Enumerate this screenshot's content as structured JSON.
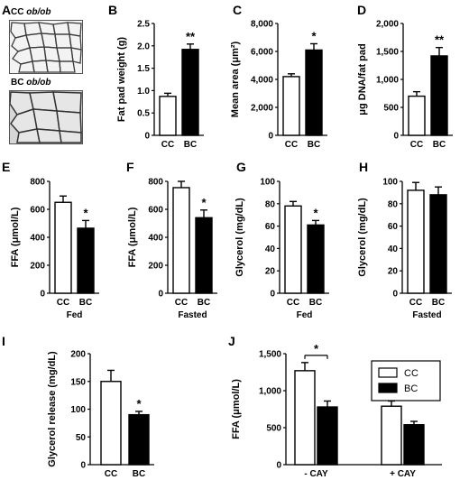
{
  "micrographs": [
    {
      "label_prefix": "CC",
      "label_strain": "ob/ob"
    },
    {
      "label_prefix": "BC",
      "label_strain": "ob/ob"
    }
  ],
  "legend": {
    "items": [
      {
        "name": "CC",
        "fill": "#ffffff"
      },
      {
        "name": "BC",
        "fill": "#000000"
      }
    ]
  },
  "chart_data": [
    {
      "panel": "A",
      "type": "image"
    },
    {
      "panel": "B",
      "type": "bar",
      "categories": [
        "CC",
        "BC"
      ],
      "values": [
        0.87,
        1.92
      ],
      "errors": [
        0.07,
        0.12
      ],
      "ylabel": "Fat pad weight (g)",
      "ylim": [
        0,
        2.5
      ],
      "ticks": [
        "0",
        "0.5",
        "1.0",
        "1.5",
        "2.0",
        "2.5"
      ],
      "tickValues": [
        0,
        0.5,
        1.0,
        1.5,
        2.0,
        2.5
      ],
      "fills": [
        "#ffffff",
        "#000000"
      ],
      "annotation": "**",
      "xlabel": ""
    },
    {
      "panel": "C",
      "type": "bar",
      "categories": [
        "CC",
        "BC"
      ],
      "values": [
        4200,
        6100
      ],
      "errors": [
        200,
        450
      ],
      "ylabel": "Mean area (μm²)",
      "ylim": [
        0,
        8000
      ],
      "ticks": [
        "0",
        "2,000",
        "4,000",
        "6,000",
        "8,000"
      ],
      "tickValues": [
        0,
        2000,
        4000,
        6000,
        8000
      ],
      "fills": [
        "#ffffff",
        "#000000"
      ],
      "annotation": "*",
      "xlabel": ""
    },
    {
      "panel": "D",
      "type": "bar",
      "categories": [
        "CC",
        "BC"
      ],
      "values": [
        700,
        1420
      ],
      "errors": [
        80,
        150
      ],
      "ylabel": "μg DNA/fat pad",
      "ylim": [
        0,
        2000
      ],
      "ticks": [
        "0",
        "500",
        "1,000",
        "1,500",
        "2,000"
      ],
      "tickValues": [
        0,
        500,
        1000,
        1500,
        2000
      ],
      "fills": [
        "#ffffff",
        "#000000"
      ],
      "annotation": "**",
      "xlabel": ""
    },
    {
      "panel": "E",
      "type": "bar",
      "categories": [
        "CC",
        "BC"
      ],
      "values": [
        650,
        465
      ],
      "errors": [
        45,
        55
      ],
      "ylabel": "FFA (μmol/L)",
      "ylim": [
        0,
        800
      ],
      "ticks": [
        "0",
        "200",
        "400",
        "600",
        "800"
      ],
      "tickValues": [
        0,
        200,
        400,
        600,
        800
      ],
      "fills": [
        "#ffffff",
        "#000000"
      ],
      "annotation": "*",
      "xlabel": "Fed"
    },
    {
      "panel": "F",
      "type": "bar",
      "categories": [
        "CC",
        "BC"
      ],
      "values": [
        755,
        540
      ],
      "errors": [
        45,
        55
      ],
      "ylabel": "FFA (μmol/L)",
      "ylim": [
        0,
        800
      ],
      "ticks": [
        "0",
        "200",
        "400",
        "600",
        "800"
      ],
      "tickValues": [
        0,
        200,
        400,
        600,
        800
      ],
      "fills": [
        "#ffffff",
        "#000000"
      ],
      "annotation": "*",
      "xlabel": "Fasted"
    },
    {
      "panel": "G",
      "type": "bar",
      "categories": [
        "CC",
        "BC"
      ],
      "values": [
        78,
        61
      ],
      "errors": [
        4,
        4
      ],
      "ylabel": "Glycerol (mg/dL)",
      "ylim": [
        0,
        100
      ],
      "ticks": [
        "0",
        "20",
        "40",
        "60",
        "80",
        "100"
      ],
      "tickValues": [
        0,
        20,
        40,
        60,
        80,
        100
      ],
      "fills": [
        "#ffffff",
        "#000000"
      ],
      "annotation": "*",
      "xlabel": "Fed"
    },
    {
      "panel": "H",
      "type": "bar",
      "categories": [
        "CC",
        "BC"
      ],
      "values": [
        92,
        88
      ],
      "errors": [
        7,
        7
      ],
      "ylabel": "Glycerol (mg/dL)",
      "ylim": [
        0,
        100
      ],
      "ticks": [
        "0",
        "20",
        "40",
        "60",
        "80",
        "100"
      ],
      "tickValues": [
        0,
        20,
        40,
        60,
        80,
        100
      ],
      "fills": [
        "#ffffff",
        "#000000"
      ],
      "annotation": "",
      "xlabel": "Fasted"
    },
    {
      "panel": "I",
      "type": "bar",
      "categories": [
        "CC",
        "BC"
      ],
      "values": [
        150,
        90
      ],
      "errors": [
        20,
        6
      ],
      "ylabel": "Glycerol release (mg/dL)",
      "ylim": [
        0,
        200
      ],
      "ticks": [
        "0",
        "50",
        "100",
        "150",
        "200"
      ],
      "tickValues": [
        0,
        50,
        100,
        150,
        200
      ],
      "fills": [
        "#ffffff",
        "#000000"
      ],
      "annotation": "*",
      "xlabel": ""
    },
    {
      "panel": "J",
      "type": "bar",
      "categories": [
        "- CAY",
        "+ CAY"
      ],
      "series": [
        {
          "name": "CC",
          "fill": "#ffffff",
          "values": [
            1270,
            790
          ],
          "errors": [
            110,
            70
          ]
        },
        {
          "name": "BC",
          "fill": "#000000",
          "values": [
            780,
            540
          ],
          "errors": [
            80,
            45
          ]
        }
      ],
      "ylabel": "FFA (μmol/L)",
      "ylim": [
        0,
        1500
      ],
      "ticks": [
        "0",
        "500",
        "1,000",
        "1,500"
      ],
      "tickValues": [
        0,
        500,
        1000,
        1500
      ],
      "annotations": [
        "*",
        "*"
      ],
      "xlabel": ""
    }
  ]
}
